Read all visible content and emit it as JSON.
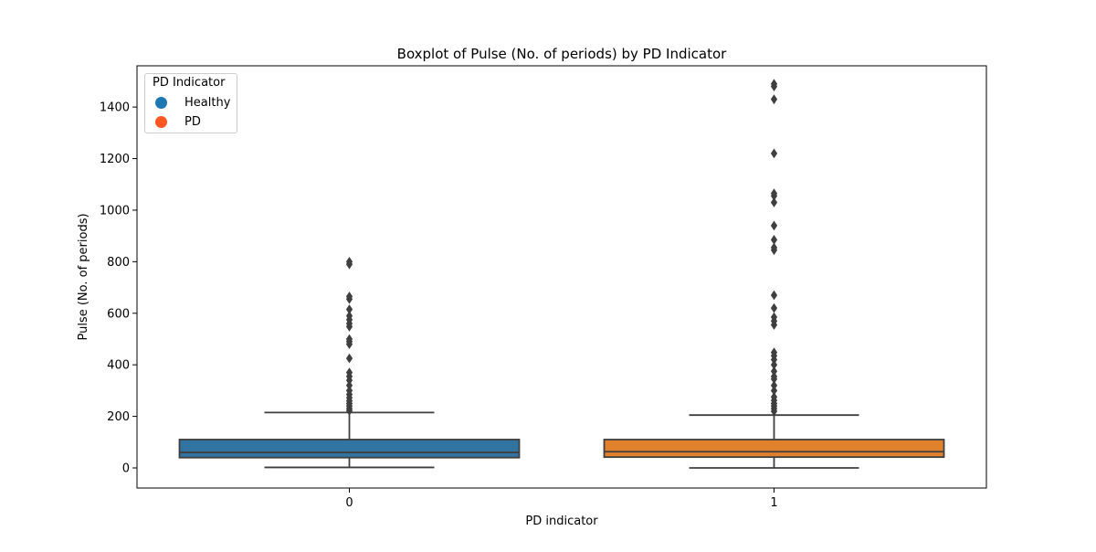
{
  "colors": {
    "healthy_box": "#3274a1",
    "pd_box": "#e1812c",
    "line": "#3f3f3f",
    "legend_healthy": "#1f77b4",
    "legend_pd": "#ff5722"
  },
  "chart_data": {
    "type": "boxplot",
    "title": "Boxplot of Pulse (No. of periods) by PD Indicator",
    "xlabel": "PD indicator",
    "ylabel": "Pulse (No. of periods)",
    "categories": [
      "0",
      "1"
    ],
    "ylim": [
      -78,
      1560
    ],
    "yticks": [
      "0",
      "200",
      "400",
      "600",
      "800",
      "1000",
      "1200",
      "1400"
    ],
    "boxes": [
      {
        "category": "0",
        "whisker_low": 2,
        "q1": 40,
        "median": 60,
        "q3": 110,
        "whisker_high": 215,
        "outliers": [
          222,
          230,
          240,
          250,
          260,
          272,
          285,
          300,
          320,
          340,
          355,
          370,
          425,
          480,
          490,
          500,
          548,
          560,
          575,
          590,
          615,
          655,
          665,
          790,
          800
        ]
      },
      {
        "category": "1",
        "whisker_low": 0,
        "q1": 42,
        "median": 63,
        "q3": 110,
        "whisker_high": 205,
        "outliers": [
          220,
          230,
          240,
          250,
          262,
          275,
          300,
          320,
          345,
          355,
          375,
          400,
          420,
          435,
          448,
          555,
          570,
          585,
          620,
          670,
          845,
          855,
          885,
          940,
          1030,
          1055,
          1065,
          1220,
          1430,
          1480,
          1490
        ]
      }
    ],
    "legend": {
      "title": "PD Indicator",
      "entries": [
        "Healthy",
        "PD"
      ],
      "placement": "top-left"
    }
  }
}
